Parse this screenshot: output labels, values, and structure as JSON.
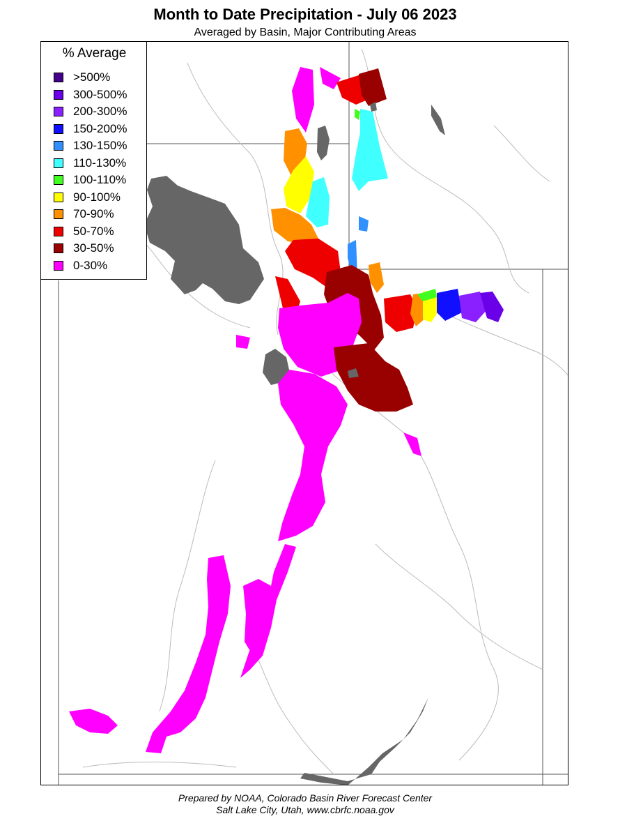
{
  "title": "Month to Date Precipitation - July 06 2023",
  "subtitle": "Averaged by Basin, Major Contributing Areas",
  "legend": {
    "title": "% Average",
    "items": [
      {
        "label": ">500%",
        "color": "#440088"
      },
      {
        "label": "300-500%",
        "color": "#6a00e8"
      },
      {
        "label": "200-300%",
        "color": "#8a20ff"
      },
      {
        "label": "150-200%",
        "color": "#1010ff"
      },
      {
        "label": "130-150%",
        "color": "#3090ff"
      },
      {
        "label": "110-130%",
        "color": "#40ffff"
      },
      {
        "label": "100-110%",
        "color": "#40ff20"
      },
      {
        "label": "90-100%",
        "color": "#ffff00"
      },
      {
        "label": "70-90%",
        "color": "#ff9000"
      },
      {
        "label": "50-70%",
        "color": "#ee0000"
      },
      {
        "label": "30-50%",
        "color": "#990000"
      },
      {
        "label": "0-30%",
        "color": "#ff00ff"
      }
    ]
  },
  "colors": {
    "lake": "#666666",
    "river": "#bbbbbb",
    "border": "#555555"
  },
  "footer": {
    "line1": "Prepared by NOAA, Colorado Basin River Forecast Center",
    "line2": "Salt Lake City, Utah, www.cbrfc.noaa.gov"
  }
}
